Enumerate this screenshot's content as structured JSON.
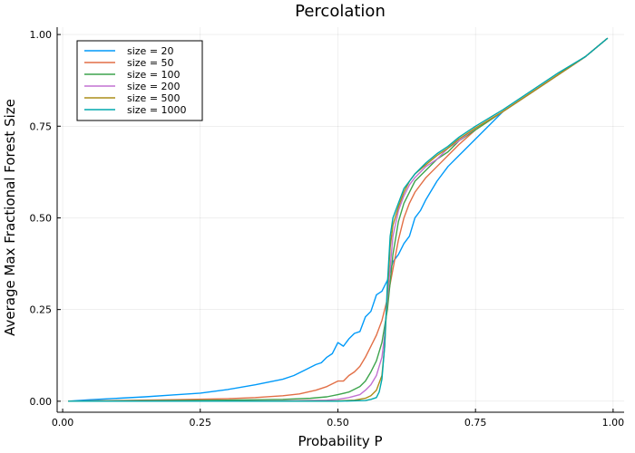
{
  "chart_data": {
    "type": "line",
    "title": "Percolation",
    "xlabel": "Probability P",
    "ylabel": "Average Max Fractional Forest Size",
    "xlim": [
      -0.01,
      1.02
    ],
    "ylim": [
      -0.03,
      1.02
    ],
    "xticks": [
      0.0,
      0.25,
      0.5,
      0.75,
      1.0
    ],
    "xtick_labels": [
      "0.00",
      "0.25",
      "0.50",
      "0.75",
      "1.00"
    ],
    "yticks": [
      0.0,
      0.25,
      0.5,
      0.75,
      1.0
    ],
    "ytick_labels": [
      "0.00",
      "0.25",
      "0.50",
      "0.75",
      "1.00"
    ],
    "grid": true,
    "legend_position": "top-left",
    "series": [
      {
        "name": "size = 20",
        "color": "#009af9",
        "points": [
          [
            0.01,
            0.0
          ],
          [
            0.05,
            0.004
          ],
          [
            0.1,
            0.008
          ],
          [
            0.15,
            0.012
          ],
          [
            0.2,
            0.017
          ],
          [
            0.25,
            0.022
          ],
          [
            0.3,
            0.032
          ],
          [
            0.35,
            0.045
          ],
          [
            0.4,
            0.06
          ],
          [
            0.42,
            0.07
          ],
          [
            0.44,
            0.085
          ],
          [
            0.46,
            0.1
          ],
          [
            0.47,
            0.105
          ],
          [
            0.48,
            0.12
          ],
          [
            0.49,
            0.13
          ],
          [
            0.5,
            0.16
          ],
          [
            0.51,
            0.15
          ],
          [
            0.52,
            0.17
          ],
          [
            0.53,
            0.185
          ],
          [
            0.54,
            0.19
          ],
          [
            0.55,
            0.23
          ],
          [
            0.56,
            0.245
          ],
          [
            0.57,
            0.29
          ],
          [
            0.58,
            0.3
          ],
          [
            0.59,
            0.33
          ],
          [
            0.6,
            0.38
          ],
          [
            0.61,
            0.4
          ],
          [
            0.62,
            0.43
          ],
          [
            0.63,
            0.45
          ],
          [
            0.64,
            0.5
          ],
          [
            0.65,
            0.52
          ],
          [
            0.66,
            0.55
          ],
          [
            0.68,
            0.6
          ],
          [
            0.7,
            0.64
          ],
          [
            0.72,
            0.67
          ],
          [
            0.74,
            0.7
          ],
          [
            0.76,
            0.73
          ],
          [
            0.8,
            0.79
          ],
          [
            0.85,
            0.84
          ],
          [
            0.9,
            0.89
          ],
          [
            0.95,
            0.94
          ],
          [
            0.99,
            0.99
          ]
        ]
      },
      {
        "name": "size = 50",
        "color": "#e26f46",
        "points": [
          [
            0.01,
            0.0
          ],
          [
            0.1,
            0.002
          ],
          [
            0.2,
            0.004
          ],
          [
            0.3,
            0.007
          ],
          [
            0.35,
            0.01
          ],
          [
            0.4,
            0.015
          ],
          [
            0.43,
            0.02
          ],
          [
            0.46,
            0.03
          ],
          [
            0.48,
            0.04
          ],
          [
            0.5,
            0.055
          ],
          [
            0.51,
            0.055
          ],
          [
            0.52,
            0.07
          ],
          [
            0.53,
            0.08
          ],
          [
            0.54,
            0.095
          ],
          [
            0.55,
            0.12
          ],
          [
            0.56,
            0.15
          ],
          [
            0.57,
            0.18
          ],
          [
            0.58,
            0.22
          ],
          [
            0.59,
            0.28
          ],
          [
            0.6,
            0.36
          ],
          [
            0.61,
            0.44
          ],
          [
            0.62,
            0.5
          ],
          [
            0.63,
            0.54
          ],
          [
            0.64,
            0.57
          ],
          [
            0.66,
            0.61
          ],
          [
            0.68,
            0.64
          ],
          [
            0.7,
            0.67
          ],
          [
            0.72,
            0.7
          ],
          [
            0.75,
            0.74
          ],
          [
            0.8,
            0.79
          ],
          [
            0.85,
            0.84
          ],
          [
            0.9,
            0.89
          ],
          [
            0.95,
            0.94
          ],
          [
            0.99,
            0.99
          ]
        ]
      },
      {
        "name": "size = 100",
        "color": "#3da44d",
        "points": [
          [
            0.01,
            0.0
          ],
          [
            0.1,
            0.001
          ],
          [
            0.2,
            0.002
          ],
          [
            0.3,
            0.003
          ],
          [
            0.4,
            0.005
          ],
          [
            0.45,
            0.008
          ],
          [
            0.48,
            0.012
          ],
          [
            0.5,
            0.018
          ],
          [
            0.52,
            0.025
          ],
          [
            0.54,
            0.04
          ],
          [
            0.55,
            0.055
          ],
          [
            0.56,
            0.08
          ],
          [
            0.57,
            0.11
          ],
          [
            0.58,
            0.16
          ],
          [
            0.59,
            0.25
          ],
          [
            0.6,
            0.4
          ],
          [
            0.61,
            0.49
          ],
          [
            0.62,
            0.54
          ],
          [
            0.63,
            0.57
          ],
          [
            0.64,
            0.6
          ],
          [
            0.66,
            0.63
          ],
          [
            0.68,
            0.66
          ],
          [
            0.7,
            0.68
          ],
          [
            0.72,
            0.71
          ],
          [
            0.75,
            0.74
          ],
          [
            0.8,
            0.79
          ],
          [
            0.85,
            0.84
          ],
          [
            0.9,
            0.89
          ],
          [
            0.95,
            0.94
          ],
          [
            0.99,
            0.99
          ]
        ]
      },
      {
        "name": "size = 200",
        "color": "#c271d2",
        "points": [
          [
            0.01,
            0.0
          ],
          [
            0.2,
            0.0
          ],
          [
            0.4,
            0.001
          ],
          [
            0.48,
            0.003
          ],
          [
            0.5,
            0.005
          ],
          [
            0.52,
            0.01
          ],
          [
            0.54,
            0.018
          ],
          [
            0.55,
            0.03
          ],
          [
            0.56,
            0.045
          ],
          [
            0.57,
            0.07
          ],
          [
            0.58,
            0.12
          ],
          [
            0.585,
            0.18
          ],
          [
            0.59,
            0.28
          ],
          [
            0.6,
            0.45
          ],
          [
            0.61,
            0.52
          ],
          [
            0.62,
            0.56
          ],
          [
            0.63,
            0.59
          ],
          [
            0.64,
            0.61
          ],
          [
            0.66,
            0.64
          ],
          [
            0.68,
            0.66
          ],
          [
            0.7,
            0.69
          ],
          [
            0.72,
            0.71
          ],
          [
            0.75,
            0.745
          ],
          [
            0.8,
            0.79
          ],
          [
            0.85,
            0.84
          ],
          [
            0.9,
            0.89
          ],
          [
            0.95,
            0.94
          ],
          [
            0.99,
            0.99
          ]
        ]
      },
      {
        "name": "size = 500",
        "color": "#ac8d18",
        "points": [
          [
            0.01,
            0.0
          ],
          [
            0.3,
            0.0
          ],
          [
            0.5,
            0.001
          ],
          [
            0.53,
            0.003
          ],
          [
            0.55,
            0.008
          ],
          [
            0.56,
            0.015
          ],
          [
            0.57,
            0.03
          ],
          [
            0.58,
            0.07
          ],
          [
            0.585,
            0.15
          ],
          [
            0.59,
            0.3
          ],
          [
            0.595,
            0.42
          ],
          [
            0.6,
            0.48
          ],
          [
            0.61,
            0.53
          ],
          [
            0.62,
            0.57
          ],
          [
            0.63,
            0.6
          ],
          [
            0.64,
            0.62
          ],
          [
            0.66,
            0.645
          ],
          [
            0.68,
            0.67
          ],
          [
            0.7,
            0.69
          ],
          [
            0.72,
            0.715
          ],
          [
            0.75,
            0.745
          ],
          [
            0.8,
            0.79
          ],
          [
            0.85,
            0.84
          ],
          [
            0.9,
            0.89
          ],
          [
            0.95,
            0.94
          ],
          [
            0.99,
            0.99
          ]
        ]
      },
      {
        "name": "size = 1000",
        "color": "#00a9ad",
        "points": [
          [
            0.01,
            0.0
          ],
          [
            0.3,
            0.0
          ],
          [
            0.5,
            0.0
          ],
          [
            0.55,
            0.002
          ],
          [
            0.56,
            0.005
          ],
          [
            0.57,
            0.01
          ],
          [
            0.575,
            0.025
          ],
          [
            0.58,
            0.06
          ],
          [
            0.585,
            0.15
          ],
          [
            0.59,
            0.32
          ],
          [
            0.595,
            0.45
          ],
          [
            0.6,
            0.5
          ],
          [
            0.61,
            0.54
          ],
          [
            0.62,
            0.58
          ],
          [
            0.63,
            0.6
          ],
          [
            0.64,
            0.62
          ],
          [
            0.66,
            0.65
          ],
          [
            0.68,
            0.675
          ],
          [
            0.7,
            0.695
          ],
          [
            0.72,
            0.72
          ],
          [
            0.75,
            0.75
          ],
          [
            0.8,
            0.795
          ],
          [
            0.85,
            0.845
          ],
          [
            0.9,
            0.895
          ],
          [
            0.95,
            0.94
          ],
          [
            0.99,
            0.99
          ]
        ]
      }
    ]
  }
}
